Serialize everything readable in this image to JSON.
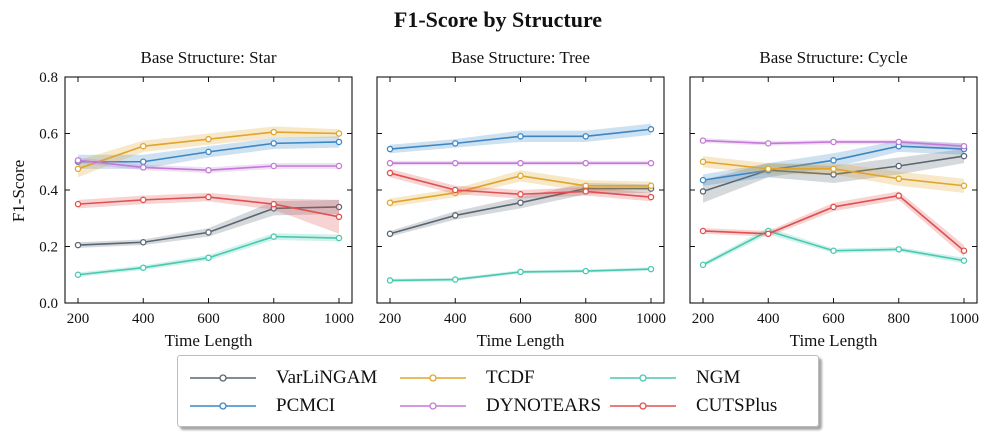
{
  "chart_data": {
    "type": "line",
    "title": "F1-Score by Structure",
    "ylabel": "F1-Score",
    "xlabel": "Time Length",
    "x": [
      200,
      400,
      600,
      800,
      1000
    ],
    "xticks": [
      "200",
      "400",
      "600",
      "800",
      "1000"
    ],
    "ylim": [
      0.0,
      0.8
    ],
    "yticks": [
      "0.0",
      "0.2",
      "0.4",
      "0.6",
      "0.8"
    ],
    "grid": false,
    "legend_position": "bottom-center",
    "series_meta": [
      {
        "name": "VarLiNGAM",
        "color": "#5a6672"
      },
      {
        "name": "PCMCI",
        "color": "#3b86c4"
      },
      {
        "name": "TCDF",
        "color": "#e0a52a"
      },
      {
        "name": "DYNOTEARS",
        "color": "#c27ad6"
      },
      {
        "name": "NGM",
        "color": "#48c9b0"
      },
      {
        "name": "CUTSPlus",
        "color": "#e0504e"
      }
    ],
    "panels": [
      {
        "subtitle": "Base Structure: Star",
        "series": [
          {
            "name": "VarLiNGAM",
            "values": [
              0.205,
              0.215,
              0.25,
              0.335,
              0.34
            ],
            "band": [
              0.01,
              0.01,
              0.015,
              0.025,
              0.025
            ]
          },
          {
            "name": "PCMCI",
            "values": [
              0.5,
              0.5,
              0.535,
              0.565,
              0.57
            ],
            "band": [
              0.025,
              0.025,
              0.02,
              0.02,
              0.02
            ]
          },
          {
            "name": "TCDF",
            "values": [
              0.475,
              0.555,
              0.58,
              0.605,
              0.6
            ],
            "band": [
              0.03,
              0.02,
              0.02,
              0.02,
              0.015
            ]
          },
          {
            "name": "DYNOTEARS",
            "values": [
              0.505,
              0.48,
              0.47,
              0.485,
              0.485
            ],
            "band": [
              0.01,
              0.01,
              0.01,
              0.01,
              0.01
            ]
          },
          {
            "name": "NGM",
            "values": [
              0.1,
              0.125,
              0.16,
              0.235,
              0.23
            ],
            "band": [
              0.008,
              0.008,
              0.01,
              0.012,
              0.012
            ]
          },
          {
            "name": "CUTSPlus",
            "values": [
              0.35,
              0.365,
              0.375,
              0.35,
              0.305
            ],
            "band": [
              0.015,
              0.015,
              0.015,
              0.02,
              0.06
            ]
          }
        ]
      },
      {
        "subtitle": "Base Structure: Tree",
        "series": [
          {
            "name": "VarLiNGAM",
            "values": [
              0.245,
              0.31,
              0.355,
              0.405,
              0.405
            ],
            "band": [
              0.01,
              0.015,
              0.02,
              0.02,
              0.015
            ]
          },
          {
            "name": "PCMCI",
            "values": [
              0.545,
              0.565,
              0.59,
              0.59,
              0.615
            ],
            "band": [
              0.015,
              0.015,
              0.02,
              0.02,
              0.02
            ]
          },
          {
            "name": "TCDF",
            "values": [
              0.355,
              0.39,
              0.45,
              0.415,
              0.415
            ],
            "band": [
              0.015,
              0.015,
              0.02,
              0.02,
              0.015
            ]
          },
          {
            "name": "DYNOTEARS",
            "values": [
              0.495,
              0.495,
              0.495,
              0.495,
              0.495
            ],
            "band": [
              0.008,
              0.008,
              0.008,
              0.008,
              0.008
            ]
          },
          {
            "name": "NGM",
            "values": [
              0.08,
              0.083,
              0.11,
              0.113,
              0.12
            ],
            "band": [
              0.006,
              0.006,
              0.006,
              0.006,
              0.006
            ]
          },
          {
            "name": "CUTSPlus",
            "values": [
              0.46,
              0.4,
              0.385,
              0.395,
              0.375
            ],
            "band": [
              0.015,
              0.015,
              0.015,
              0.015,
              0.015
            ]
          }
        ]
      },
      {
        "subtitle": "Base Structure: Cycle",
        "series": [
          {
            "name": "VarLiNGAM",
            "values": [
              0.395,
              0.47,
              0.455,
              0.485,
              0.52
            ],
            "band": [
              0.04,
              0.025,
              0.03,
              0.03,
              0.025
            ]
          },
          {
            "name": "PCMCI",
            "values": [
              0.435,
              0.47,
              0.505,
              0.555,
              0.545
            ],
            "band": [
              0.02,
              0.025,
              0.025,
              0.02,
              0.02
            ]
          },
          {
            "name": "TCDF",
            "values": [
              0.5,
              0.475,
              0.475,
              0.44,
              0.415
            ],
            "band": [
              0.02,
              0.02,
              0.02,
              0.025,
              0.025
            ]
          },
          {
            "name": "DYNOTEARS",
            "values": [
              0.575,
              0.565,
              0.57,
              0.57,
              0.555
            ],
            "band": [
              0.008,
              0.008,
              0.008,
              0.008,
              0.01
            ]
          },
          {
            "name": "NGM",
            "values": [
              0.135,
              0.255,
              0.185,
              0.19,
              0.15
            ],
            "band": [
              0.008,
              0.012,
              0.008,
              0.008,
              0.01
            ]
          },
          {
            "name": "CUTSPlus",
            "values": [
              0.255,
              0.245,
              0.34,
              0.38,
              0.185
            ],
            "band": [
              0.01,
              0.01,
              0.015,
              0.015,
              0.02
            ]
          }
        ]
      }
    ]
  }
}
